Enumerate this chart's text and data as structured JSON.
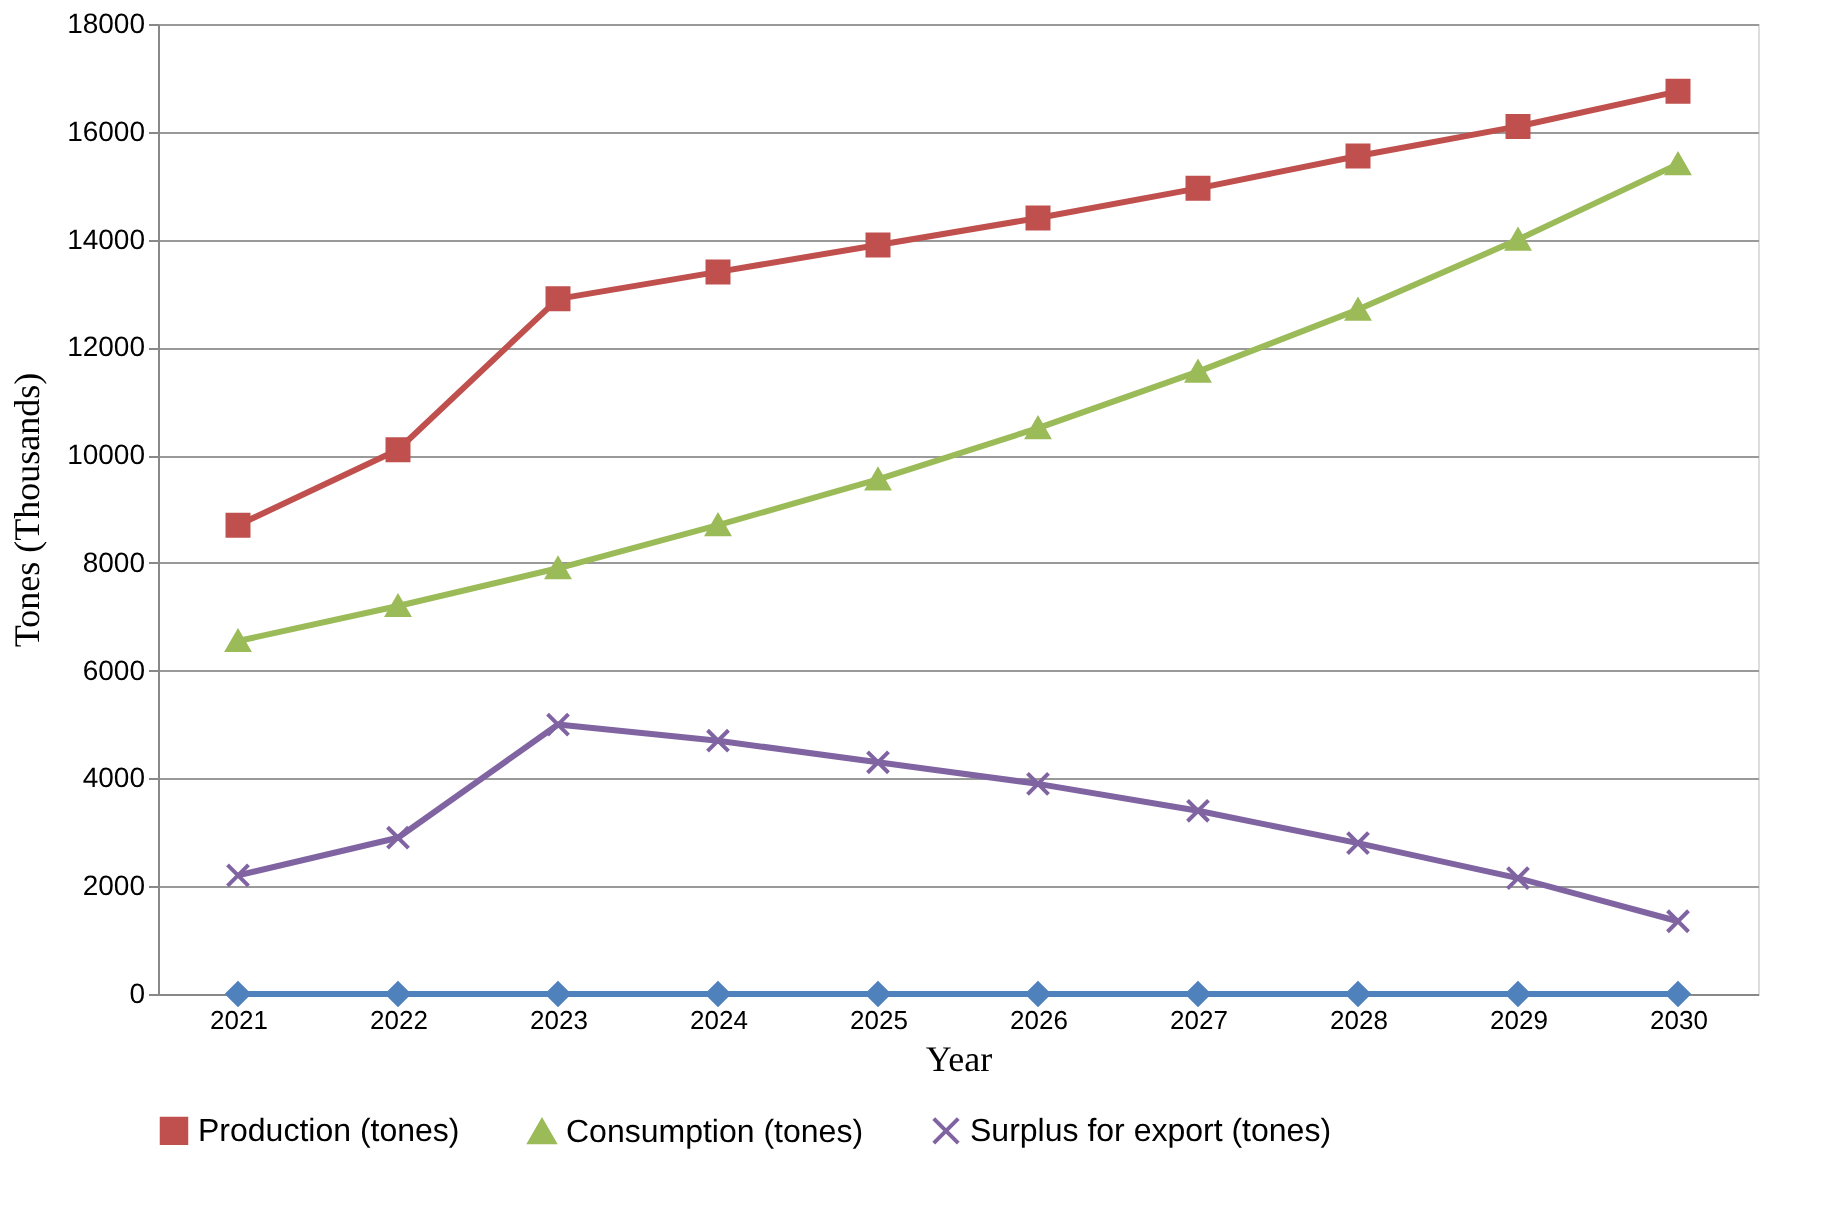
{
  "chart_data": {
    "type": "line",
    "xlabel": "Year",
    "ylabel": "Tones (Thousands)",
    "categories": [
      "2021",
      "2022",
      "2023",
      "2024",
      "2025",
      "2026",
      "2027",
      "2028",
      "2029",
      "2030"
    ],
    "series": [
      {
        "name": "Production (tones)",
        "color": "#c0504d",
        "marker": "square",
        "values": [
          8700,
          10100,
          12900,
          13400,
          13900,
          14400,
          14950,
          15550,
          16100,
          16750
        ]
      },
      {
        "name": "Consumption (tones)",
        "color": "#9bbb59",
        "marker": "triangle",
        "values": [
          6550,
          7200,
          7900,
          8700,
          9550,
          10500,
          11550,
          12700,
          14000,
          15400
        ]
      },
      {
        "name": "Surplus for export (tones)",
        "color": "#8064a2",
        "marker": "cross",
        "values": [
          2200,
          2900,
          5000,
          4700,
          4300,
          3900,
          3400,
          2800,
          2150,
          1350
        ]
      },
      {
        "color": "#4f81bd",
        "marker": "diamond",
        "values": [
          0,
          0,
          0,
          0,
          0,
          0,
          0,
          0,
          0,
          0
        ]
      }
    ],
    "ylim": [
      0,
      18000
    ],
    "yticks": [
      0,
      2000,
      4000,
      6000,
      8000,
      10000,
      12000,
      14000,
      16000,
      18000
    ],
    "grid": "y",
    "legend": "bottom",
    "line_style": "solid"
  }
}
